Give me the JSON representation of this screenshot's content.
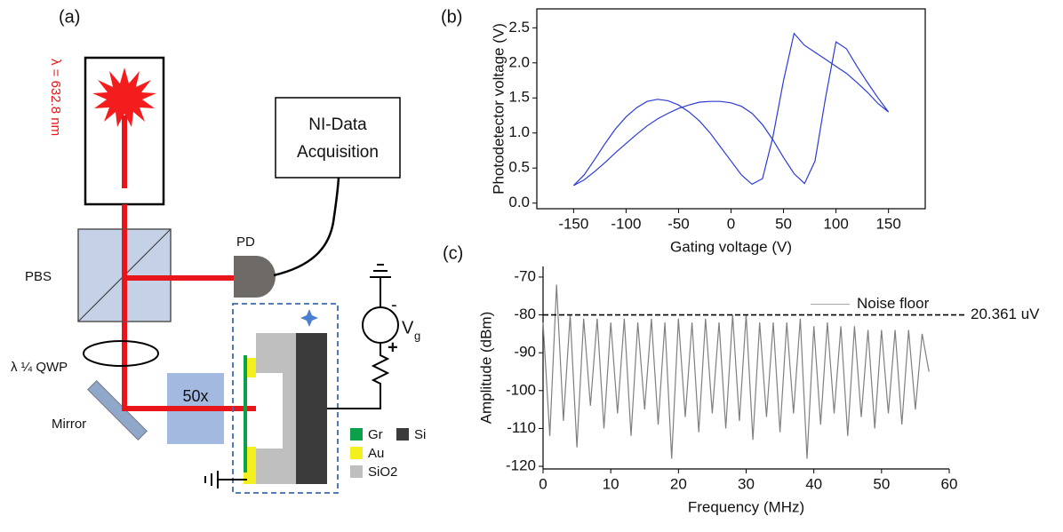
{
  "panels": {
    "a": "(a)",
    "b": "(b)",
    "c": "(c)"
  },
  "diagram": {
    "laser_label": "λ = 632.8 nm",
    "daq_line1": "NI-Data",
    "daq_line2": "Acquisition",
    "pd": "PD",
    "pbs": "PBS",
    "qwp": "λ ¼ QWP",
    "mirror": "Mirror",
    "objective": "50x",
    "vg": "V",
    "vg_sub": "g",
    "minus": "-",
    "plus": "+",
    "legend": {
      "gr": "Gr",
      "si": "Si",
      "au": "Au",
      "sio2": "SiO2"
    }
  },
  "chart_data": [
    {
      "type": "line",
      "xlabel": "Gating voltage (V)",
      "ylabel": "Photodetector voltage (V)",
      "color": "#2b3bd6",
      "x": [
        -150,
        -140,
        -130,
        -120,
        -110,
        -100,
        -90,
        -80,
        -70,
        -60,
        -50,
        -40,
        -30,
        -20,
        -10,
        0,
        10,
        20,
        30,
        40,
        50,
        60,
        70,
        80,
        90,
        100,
        110,
        120,
        130,
        140,
        150,
        140,
        130,
        120,
        110,
        100,
        90,
        80,
        70,
        60,
        50,
        40,
        30,
        20,
        10,
        0,
        -10,
        -20,
        -30,
        -40,
        -50,
        -60,
        -70,
        -80,
        -90,
        -100,
        -110,
        -120,
        -130,
        -140,
        -150
      ],
      "values": [
        0.25,
        0.4,
        0.62,
        0.85,
        1.06,
        1.23,
        1.36,
        1.45,
        1.48,
        1.46,
        1.4,
        1.3,
        1.17,
        1.0,
        0.8,
        0.6,
        0.4,
        0.27,
        0.35,
        0.95,
        1.75,
        2.42,
        2.25,
        2.15,
        2.05,
        1.95,
        1.85,
        1.72,
        1.58,
        1.42,
        1.3,
        1.5,
        1.72,
        1.95,
        2.2,
        2.3,
        1.5,
        0.6,
        0.28,
        0.42,
        0.65,
        0.9,
        1.12,
        1.28,
        1.38,
        1.43,
        1.45,
        1.45,
        1.44,
        1.4,
        1.35,
        1.28,
        1.2,
        1.1,
        0.98,
        0.85,
        0.72,
        0.58,
        0.45,
        0.33,
        0.25
      ],
      "xlim": [
        -185,
        185
      ],
      "xticks": [
        -150,
        -100,
        -50,
        0,
        50,
        100,
        150
      ],
      "ylim": [
        -0.08,
        2.77
      ],
      "yticks": [
        {
          "value": 0,
          "label": "0.0"
        },
        0.5,
        {
          "value": 1,
          "label": "1.0"
        },
        1.5,
        {
          "value": 2,
          "label": "2.0"
        },
        2.5
      ],
      "grid": false
    },
    {
      "type": "line",
      "xlabel": "Frequency (MHz)",
      "ylabel": "Amplitude (dBm)",
      "color": "#7f7f7f",
      "x": [
        0,
        1,
        2,
        3,
        4,
        5,
        6,
        7,
        8,
        9,
        10,
        11,
        12,
        13,
        14,
        15,
        16,
        17,
        18,
        19,
        20,
        21,
        22,
        23,
        24,
        25,
        26,
        27,
        28,
        29,
        30,
        31,
        32,
        33,
        34,
        35,
        36,
        37,
        38,
        39,
        40,
        41,
        42,
        43,
        44,
        45,
        46,
        47,
        48,
        49,
        50,
        51,
        52,
        53,
        54,
        55,
        56,
        57
      ],
      "values": [
        -82,
        -112,
        -72,
        -108,
        -80,
        -115,
        -81,
        -104,
        -81,
        -110,
        -82,
        -106,
        -81,
        -112,
        -82,
        -105,
        -81,
        -109,
        -82,
        -118,
        -81,
        -107,
        -82,
        -111,
        -81,
        -106,
        -82,
        -110,
        -80,
        -108,
        -80,
        -113,
        -82,
        -107,
        -82,
        -111,
        -82,
        -106,
        -81,
        -118,
        -83,
        -109,
        -82,
        -106,
        -83,
        -112,
        -83,
        -107,
        -84,
        -110,
        -84,
        -106,
        -84,
        -109,
        -84,
        -105,
        -85,
        -95
      ],
      "xlim": [
        0,
        60
      ],
      "xticks": [
        0,
        10,
        20,
        30,
        40,
        50,
        60
      ],
      "ylim": [
        -120.7,
        -67.2
      ],
      "yticks": [
        -120,
        -110,
        -100,
        -90,
        -80,
        -70
      ],
      "grid": false,
      "noise_floor": {
        "label": "Noise floor",
        "value": -80,
        "note": "20.361 uV"
      }
    }
  ]
}
